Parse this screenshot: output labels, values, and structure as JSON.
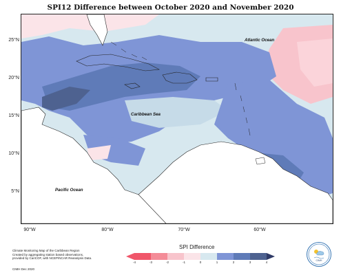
{
  "title": "SPI12 Difference between October 2020 and November 2020",
  "map": {
    "lat_ticks": [
      "25°N",
      "20°N",
      "15°N",
      "10°N",
      "5°N"
    ],
    "lon_ticks": [
      "90°W",
      "80°W",
      "70°W",
      "60°W"
    ],
    "labels": {
      "atlantic": "Atlantic Ocean",
      "caribbean": "Caribbean Sea",
      "pacific": "Pacific Ocean"
    }
  },
  "legend": {
    "title": "SPI Difference",
    "ticks": [
      "-4",
      "-3",
      "-2",
      "-1",
      "0",
      "1",
      "2",
      "3",
      "4"
    ],
    "colors": [
      "#f0566a",
      "#f48c98",
      "#f8c4cc",
      "#fbe4e8",
      "#d7e8ef",
      "#7f95d6",
      "#5f7bb8",
      "#4e6290",
      "#2f3a66"
    ]
  },
  "footnote": {
    "line1": "Climate Monitoring Map of the Caribbean Region",
    "line2": "Created by aggregating station based observations,",
    "line3": "provided by CariCOF, with NCEP/NCAR Reanalysis Data.",
    "credit": "CIMH Dec 2020"
  },
  "logo": {
    "text": "CIMH"
  }
}
